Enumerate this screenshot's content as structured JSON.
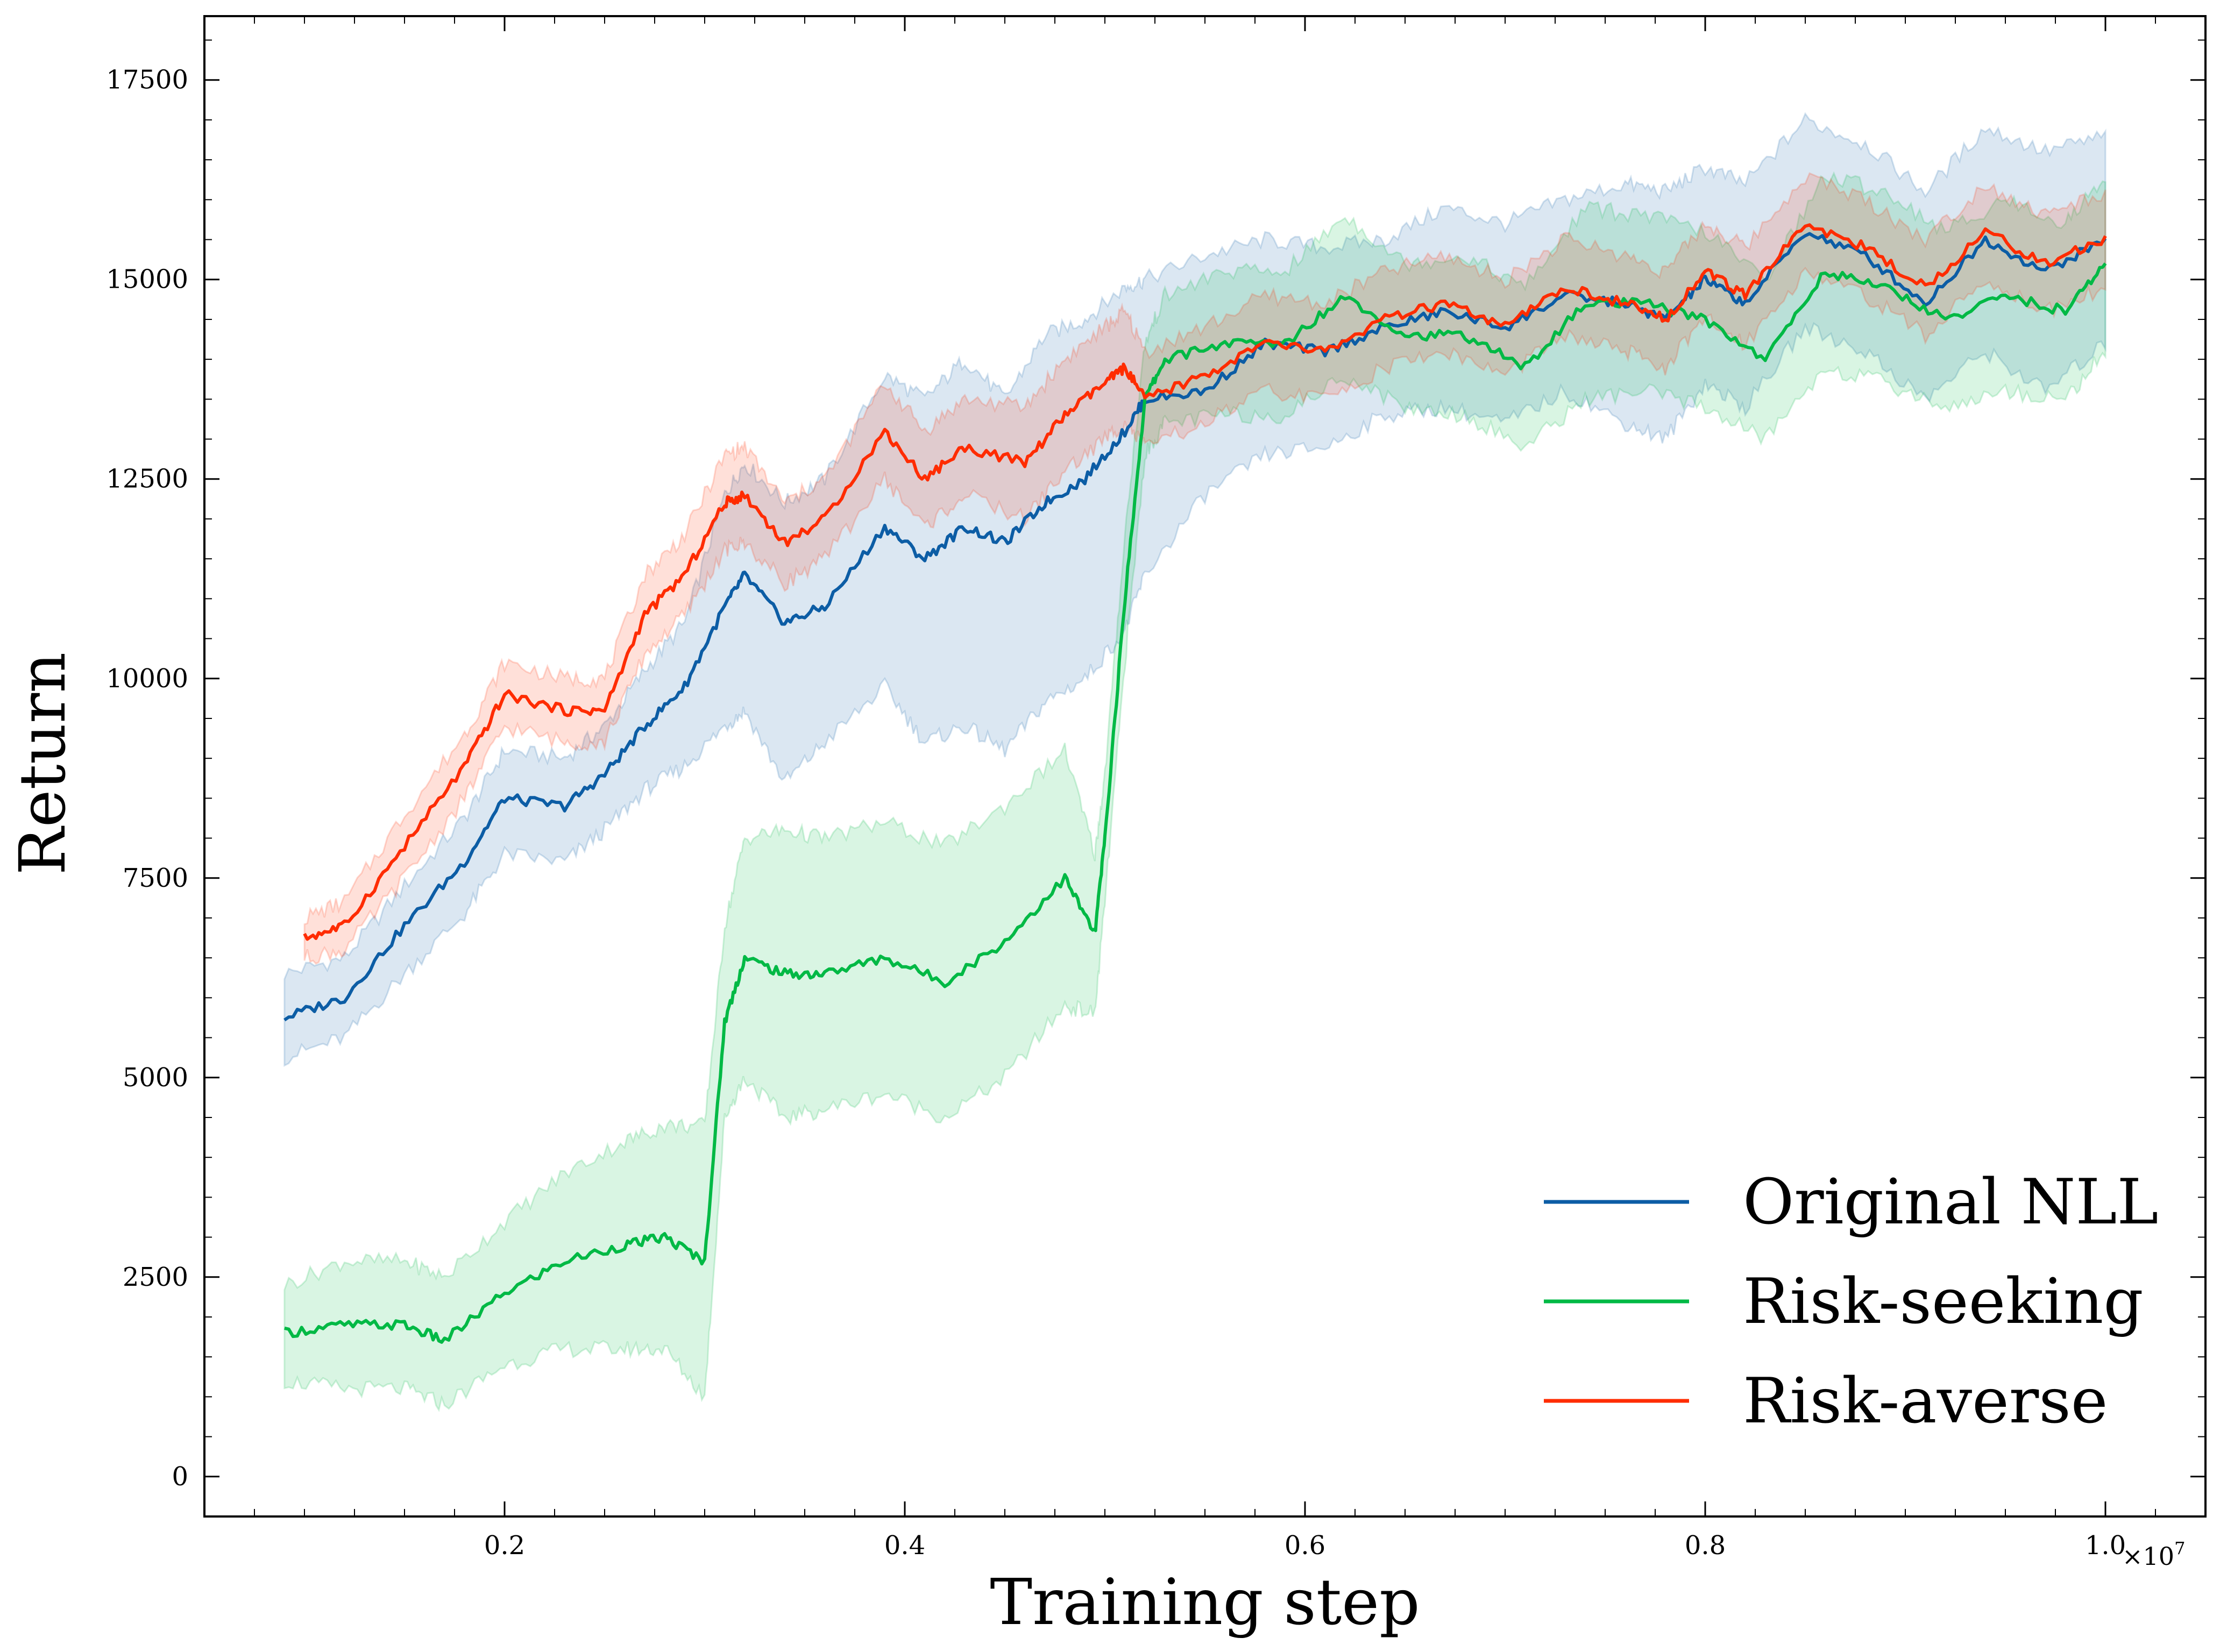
{
  "chart_data": {
    "type": "line",
    "title": "",
    "xlabel": "Training step",
    "ylabel": "Return",
    "x_multiplier": {
      "base": "×10",
      "exponent": "7"
    },
    "xlim": [
      0.05,
      1.05
    ],
    "ylim": [
      -500,
      18300
    ],
    "x_ticks": [
      0.2,
      0.4,
      0.6,
      0.8,
      1.0
    ],
    "x_tick_labels": [
      "0.2",
      "0.4",
      "0.6",
      "0.8",
      "1.0"
    ],
    "y_ticks": [
      0,
      2500,
      5000,
      7500,
      10000,
      12500,
      15000,
      17500
    ],
    "y_tick_labels": [
      "0",
      "2500",
      "5000",
      "7500",
      "10000",
      "12500",
      "15000",
      "17500"
    ],
    "legend_position": "lower-right",
    "series": [
      {
        "name": "Original NLL",
        "color": "#0C5DA5",
        "band_opacity": 0.15,
        "x": [
          0.09,
          0.12,
          0.15,
          0.18,
          0.2,
          0.23,
          0.25,
          0.27,
          0.29,
          0.31,
          0.32,
          0.34,
          0.36,
          0.39,
          0.41,
          0.43,
          0.45,
          0.47,
          0.49,
          0.51,
          0.52,
          0.55,
          0.58,
          0.61,
          0.64,
          0.67,
          0.7,
          0.73,
          0.76,
          0.78,
          0.8,
          0.82,
          0.85,
          0.88,
          0.91,
          0.94,
          0.97,
          1.0
        ],
        "mean": [
          5750,
          6000,
          6900,
          7700,
          8500,
          8400,
          8800,
          9400,
          9900,
          10900,
          11300,
          10700,
          10900,
          11900,
          11500,
          11900,
          11700,
          12200,
          12500,
          13100,
          13500,
          13600,
          14200,
          14100,
          14400,
          14600,
          14400,
          14800,
          14700,
          14500,
          15000,
          14700,
          15600,
          15300,
          14700,
          15500,
          15100,
          15500
        ],
        "lower": [
          5250,
          5500,
          6300,
          7050,
          7800,
          7700,
          8100,
          8600,
          8900,
          9400,
          9600,
          8700,
          9200,
          9900,
          9200,
          9400,
          9100,
          9700,
          10000,
          10600,
          11300,
          12300,
          12800,
          12900,
          13300,
          13400,
          13200,
          13600,
          13200,
          13000,
          13700,
          13400,
          14400,
          14100,
          13500,
          14100,
          13600,
          14200
        ],
        "upper": [
          6300,
          6500,
          7400,
          8250,
          9100,
          9000,
          9400,
          10100,
          10700,
          12300,
          12700,
          12200,
          12500,
          13800,
          13500,
          14000,
          13500,
          14300,
          14500,
          14900,
          15000,
          15300,
          15500,
          15400,
          15500,
          15900,
          15700,
          16000,
          16200,
          16100,
          16400,
          16200,
          17000,
          16700,
          16100,
          16900,
          16600,
          16800
        ]
      },
      {
        "name": "Risk-seeking",
        "color": "#00B945",
        "band_opacity": 0.15,
        "x": [
          0.09,
          0.12,
          0.15,
          0.17,
          0.2,
          0.23,
          0.26,
          0.28,
          0.3,
          0.31,
          0.32,
          0.34,
          0.36,
          0.39,
          0.42,
          0.45,
          0.48,
          0.495,
          0.5,
          0.51,
          0.52,
          0.53,
          0.56,
          0.59,
          0.62,
          0.65,
          0.68,
          0.71,
          0.74,
          0.77,
          0.8,
          0.83,
          0.86,
          0.89,
          0.92,
          0.95,
          0.98,
          1.0
        ],
        "mean": [
          1800,
          1900,
          1900,
          1700,
          2300,
          2700,
          2900,
          3000,
          2700,
          5700,
          6500,
          6300,
          6300,
          6500,
          6200,
          6700,
          7500,
          6800,
          8000,
          11000,
          13500,
          14000,
          14200,
          14200,
          14800,
          14300,
          14300,
          13900,
          14700,
          14700,
          14500,
          14000,
          15100,
          14900,
          14500,
          14800,
          14600,
          15200
        ],
        "lower": [
          1200,
          1100,
          1100,
          900,
          1400,
          1600,
          1600,
          1600,
          1000,
          4500,
          5000,
          4500,
          4600,
          4800,
          4500,
          5000,
          5900,
          5800,
          7200,
          10200,
          12800,
          13200,
          13300,
          13300,
          13800,
          13400,
          13300,
          12900,
          13500,
          13600,
          13400,
          13000,
          13900,
          13700,
          13400,
          13600,
          13500,
          14100
        ],
        "upper": [
          2400,
          2700,
          2700,
          2500,
          3200,
          3800,
          4200,
          4400,
          4400,
          6900,
          8000,
          8100,
          8000,
          8200,
          7900,
          8400,
          9100,
          7800,
          8800,
          11800,
          14200,
          14800,
          15100,
          15100,
          15800,
          15200,
          15300,
          14900,
          15900,
          15800,
          15600,
          15000,
          16300,
          16100,
          15600,
          16000,
          15700,
          16300
        ]
      },
      {
        "name": "Risk-averse",
        "color": "#FF2C00",
        "band_opacity": 0.15,
        "x": [
          0.1,
          0.12,
          0.15,
          0.18,
          0.2,
          0.23,
          0.25,
          0.27,
          0.29,
          0.31,
          0.32,
          0.34,
          0.36,
          0.39,
          0.41,
          0.43,
          0.46,
          0.48,
          0.5,
          0.51,
          0.52,
          0.55,
          0.58,
          0.61,
          0.64,
          0.67,
          0.7,
          0.73,
          0.76,
          0.78,
          0.8,
          0.82,
          0.85,
          0.88,
          0.91,
          0.94,
          0.97,
          1.0
        ],
        "mean": [
          6750,
          6900,
          7900,
          8900,
          9800,
          9600,
          9600,
          10800,
          11300,
          12200,
          12300,
          11700,
          12000,
          13100,
          12500,
          12900,
          12700,
          13300,
          13700,
          13900,
          13500,
          13800,
          14200,
          14100,
          14500,
          14700,
          14400,
          14900,
          14700,
          14500,
          15100,
          14800,
          15700,
          15400,
          14900,
          15600,
          15200,
          15500
        ],
        "lower": [
          6500,
          6600,
          7500,
          8500,
          9400,
          9200,
          9200,
          10300,
          10800,
          11600,
          11700,
          11200,
          11500,
          12500,
          11900,
          12300,
          12000,
          12600,
          13000,
          13200,
          12900,
          13200,
          13600,
          13500,
          13900,
          14100,
          13800,
          14300,
          14100,
          13900,
          14500,
          14200,
          15100,
          14800,
          14300,
          15000,
          14600,
          14900
        ],
        "upper": [
          7000,
          7200,
          8300,
          9300,
          10200,
          10000,
          10000,
          11300,
          11800,
          12800,
          12900,
          12200,
          12500,
          13700,
          13100,
          13500,
          13400,
          14000,
          14400,
          14600,
          14100,
          14400,
          14800,
          14700,
          15100,
          15300,
          15000,
          15500,
          15300,
          15100,
          15700,
          15400,
          16300,
          16000,
          15500,
          16200,
          15800,
          16100
        ]
      }
    ]
  }
}
